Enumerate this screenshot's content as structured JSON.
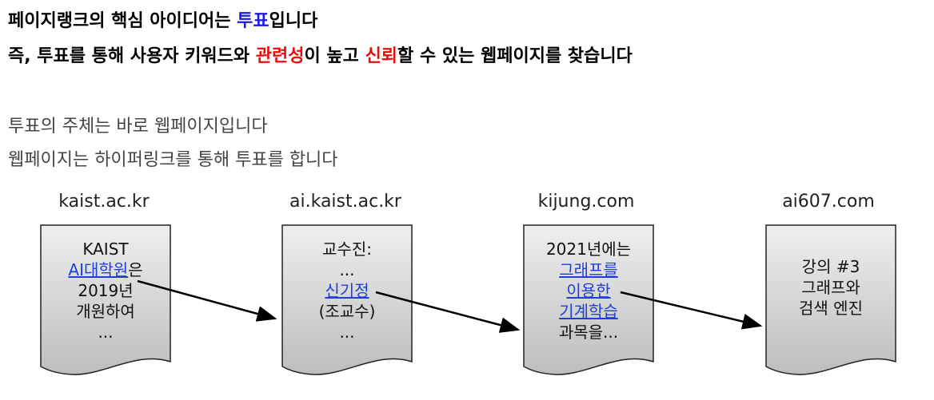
{
  "header": {
    "line1_prefix": "페이지랭크의 핵심 아이디어는 ",
    "line1_highlight": "투표",
    "line1_suffix": "입니다",
    "line2_prefix": "즉, 투표를 통해 사용자 키워드와 ",
    "line2_highlight1": "관련성",
    "line2_middle": "이 높고 ",
    "line2_highlight2": "신뢰",
    "line2_suffix": "할 수 있는 웹페이지를 찾습니다"
  },
  "body": {
    "line1": "투표의 주체는 바로 웹페이지입니다",
    "line2": "웹페이지는 하이퍼링크를 통해 투표를 합니다"
  },
  "pages": [
    {
      "url": "kaist.ac.kr",
      "lines": [
        "KAIST"
      ],
      "link_line": "AI대학원",
      "link_suffix": "은",
      "after": [
        "2019년",
        "개원하여",
        "..."
      ]
    },
    {
      "url": "ai.kaist.ac.kr",
      "lines": [
        "교수진:",
        "..."
      ],
      "link_line": "신기정",
      "after": [
        "(조교수)",
        "..."
      ]
    },
    {
      "url": "kijung.com",
      "lines": [
        "2021년에는"
      ],
      "links": [
        "그래프를",
        "이용한",
        "기계학습"
      ],
      "after": [
        "과목을..."
      ]
    },
    {
      "url": "ai607.com",
      "lines": [
        "강의 #3",
        "그래프와",
        "검색 엔진"
      ]
    }
  ],
  "colors": {
    "highlight_blue": "#1a1ae6",
    "highlight_red": "#e60f0f",
    "link": "#1f3fd8",
    "doc_fill": "#d9d9d9"
  }
}
